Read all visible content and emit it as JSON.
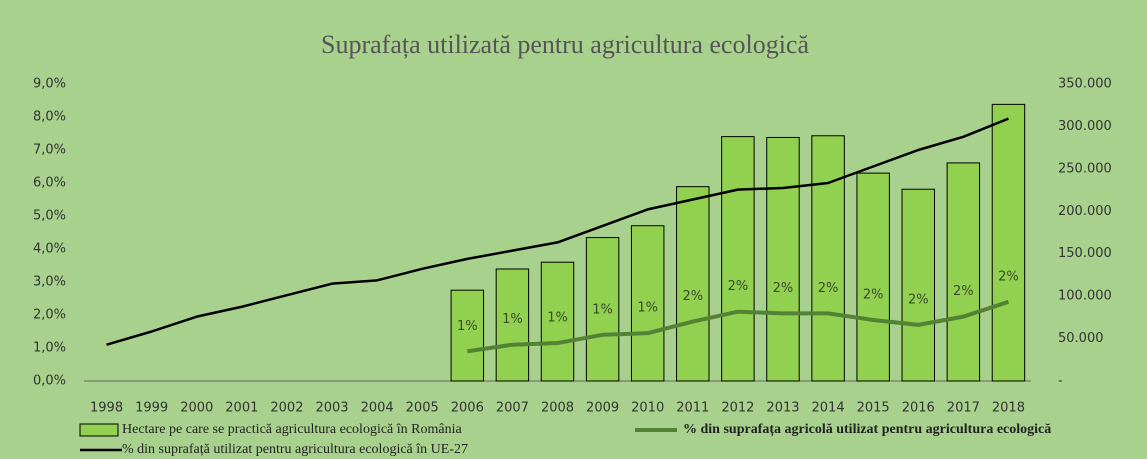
{
  "chart_data": {
    "type": "combo",
    "title": "Suprafața utilizată pentru agricultura ecologică",
    "categories": [
      "1998",
      "1999",
      "2000",
      "2001",
      "2002",
      "2003",
      "2004",
      "2005",
      "2006",
      "2007",
      "2008",
      "2009",
      "2010",
      "2011",
      "2012",
      "2013",
      "2014",
      "2015",
      "2016",
      "2017",
      "2018"
    ],
    "ylim": [
      0,
      9
    ],
    "yticks": [
      {
        "value": 0,
        "label": "0,0%"
      },
      {
        "value": 1,
        "label": "1,0%"
      },
      {
        "value": 2,
        "label": "2,0%"
      },
      {
        "value": 3,
        "label": "3,0%"
      },
      {
        "value": 4,
        "label": "4,0%"
      },
      {
        "value": 5,
        "label": "5,0%"
      },
      {
        "value": 6,
        "label": "6,0%"
      },
      {
        "value": 7,
        "label": "7,0%"
      },
      {
        "value": 8,
        "label": "8,0%"
      },
      {
        "value": 9,
        "label": "9,0%"
      }
    ],
    "y2lim": [
      0,
      350000
    ],
    "y2ticks": [
      {
        "value": 0,
        "label": "-"
      },
      {
        "value": 50000,
        "label": "50.000"
      },
      {
        "value": 100000,
        "label": "100.000"
      },
      {
        "value": 150000,
        "label": "150.000"
      },
      {
        "value": 200000,
        "label": "200.000"
      },
      {
        "value": 250000,
        "label": "250.000"
      },
      {
        "value": 300000,
        "label": "300.000"
      },
      {
        "value": 350000,
        "label": "350.000"
      }
    ],
    "series": [
      {
        "name": "Hectare pe care se practică agricultura ecologică în România",
        "type": "bar",
        "axis": "y2",
        "color": "#92d050",
        "values": [
          null,
          null,
          null,
          null,
          null,
          null,
          null,
          null,
          107000,
          132000,
          140000,
          169000,
          183000,
          229000,
          288000,
          287000,
          289000,
          245000,
          226000,
          257000,
          326000
        ]
      },
      {
        "name": "% din suprafața agricolă utilizat pentru agricultura ecologică",
        "type": "line",
        "color": "#548235",
        "values": [
          null,
          null,
          null,
          null,
          null,
          null,
          null,
          null,
          0.9,
          1.1,
          1.15,
          1.4,
          1.45,
          1.8,
          2.1,
          2.05,
          2.05,
          1.85,
          1.7,
          1.95,
          2.4
        ],
        "value_labels": [
          null,
          null,
          null,
          null,
          null,
          null,
          null,
          null,
          "1%",
          "1%",
          "1%",
          "1%",
          "1%",
          "2%",
          "2%",
          "2%",
          "2%",
          "2%",
          "2%",
          "2%",
          "2%"
        ]
      },
      {
        "name": "% din suprafață utilizat pentru agricultura ecologică în UE-27",
        "type": "line",
        "color": "#000000",
        "values": [
          1.1,
          1.5,
          1.95,
          2.25,
          2.6,
          2.95,
          3.05,
          3.4,
          3.7,
          3.95,
          4.2,
          4.7,
          5.2,
          5.5,
          5.8,
          5.85,
          6.0,
          6.5,
          7.0,
          7.4,
          7.95
        ]
      }
    ]
  }
}
